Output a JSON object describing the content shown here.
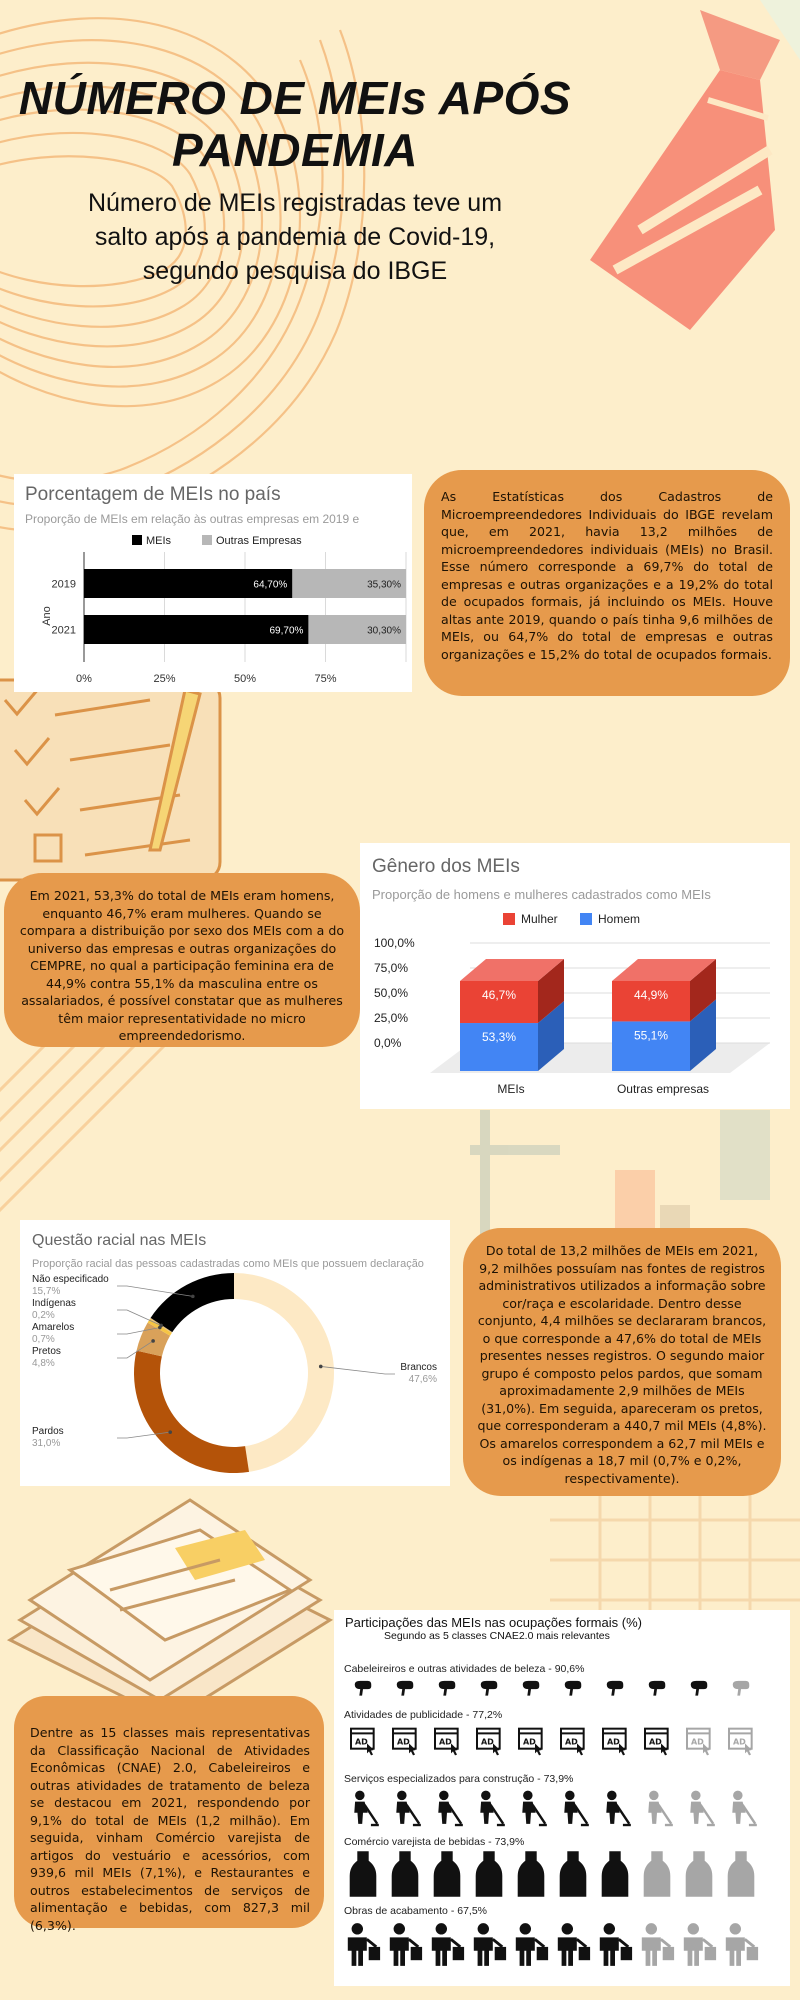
{
  "header": {
    "title": "NÚMERO DE MEIs APÓS PANDEMIA",
    "subtitle": "Número de MEIs registradas teve um salto após a pandemia de Covid-19, segundo pesquisa do IBGE"
  },
  "colors": {
    "background": "#fdeecb",
    "bubble": "#e69a4c",
    "mei_black": "#000000",
    "other_gray": "#b7b7b7",
    "mulher_red": "#ea4335",
    "homem_blue": "#4285f4",
    "brancos": "#fde9c5",
    "pardos": "#b45309",
    "pretos": "#d9a15a",
    "amarelos": "#f6c544",
    "indigenas": "#e8c17f",
    "nao_especificado": "#000000",
    "icon_dark": "#111111",
    "icon_light": "#a6a6a6"
  },
  "text_blocks": {
    "estatisticas": "As Estatísticas dos Cadastros de Microempreendedores Individuais do IBGE revelam que, em 2021, havia 13,2 milhões de microempreendedores individuais (MEIs) no Brasil. Esse número corresponde a 69,7% do total de empresas e outras organizações e a 19,2% do total de ocupados formais, já incluindo os MEIs. Houve altas ante 2019, quando o país tinha 9,6 milhões de MEIs, ou 64,7% do total de empresas e outras organizações e 15,2% do total de ocupados formais.",
    "genero": "Em 2021, 53,3% do total de MEIs eram homens, enquanto 46,7% eram mulheres. Quando se compara a distribuição por sexo dos MEIs com a do universo das empresas e outras organizações do CEMPRE, no qual a participação feminina era de 44,9% contra 55,1% da masculina entre os assalariados, é possível constatar que as mulheres têm maior representatividade no micro empreendedorismo.",
    "racial": "Do total de 13,2 milhões de MEIs em 2021, 9,2 milhões possuíam nas fontes de registros administrativos utilizados a informação sobre cor/raça e escolaridade. Dentro desse conjunto, 4,4 milhões se declararam brancos, o que corresponde a 47,6% do total de MEIs presentes nesses registros. O segundo maior grupo é composto pelos pardos, que somam aproximadamente 2,9 milhões de MEIs (31,0%). Em seguida, apareceram os pretos, que corresponderam a 440,7 mil MEIs (4,8%). Os amarelos correspondem a 62,7 mil MEIs e os indígenas a 18,7 mil (0,7% e 0,2%, respectivamente).",
    "classes": "Dentre as 15 classes mais representativas da Classificação Nacional de Atividades Econômicas (CNAE) 2.0, Cabeleireiros e outras atividades de tratamento de beleza se destacou em 2021, respondendo por 9,1% do total de MEIs (1,2 milhão). Em seguida, vinham Comércio varejista de artigos do vestuário e acessórios, com 939,6 mil MEIs (7,1%), e Restaurantes e outros estabelecimentos de serviços de alimentação e bebidas, com 827,3 mil (6,3%)."
  },
  "chart_data": [
    {
      "type": "bar",
      "orientation": "horizontal",
      "stacked": true,
      "title": "Porcentagem de MEIs no país",
      "subtitle": "Proporção de MEIs em relação às outras empresas em 2019 e",
      "ylabel": "Ano",
      "categories": [
        "2019",
        "2021"
      ],
      "series": [
        {
          "name": "MEIs",
          "values": [
            64.7,
            69.7
          ],
          "labels": [
            "64,70%",
            "69,70%"
          ]
        },
        {
          "name": "Outras Empresas",
          "values": [
            35.3,
            30.3
          ],
          "labels": [
            "35,30%",
            "30,30%"
          ]
        }
      ],
      "xticks": [
        "0%",
        "25%",
        "50%",
        "75%"
      ],
      "xlim": [
        0,
        100
      ],
      "legend": "top",
      "grid": true
    },
    {
      "type": "bar",
      "stacked": true,
      "three_d": true,
      "title": "Gênero dos MEIs",
      "subtitle": "Proporção de homens e mulheres cadastrados como MEIs",
      "categories": [
        "MEIs",
        "Outras empresas"
      ],
      "series": [
        {
          "name": "Homem",
          "values": [
            53.3,
            55.1
          ],
          "labels": [
            "53,3%",
            "55,1%"
          ]
        },
        {
          "name": "Mulher",
          "values": [
            46.7,
            44.9
          ],
          "labels": [
            "46,7%",
            "44,9%"
          ]
        }
      ],
      "legend_order": [
        "Mulher",
        "Homem"
      ],
      "yticks": [
        "100,0%",
        "75,0%",
        "50,0%",
        "25,0%",
        "0,0%"
      ],
      "ylim": [
        0,
        100
      ],
      "legend": "top",
      "grid": true
    },
    {
      "type": "pie",
      "donut": true,
      "title": "Questão racial nas MEIs",
      "subtitle": "Proporção racial das pessoas cadastradas como MEIs que possuem declaração",
      "slices": [
        {
          "name": "Brancos",
          "value": 47.6,
          "label": "47,6%"
        },
        {
          "name": "Pardos",
          "value": 31.0,
          "label": "31,0%"
        },
        {
          "name": "Pretos",
          "value": 4.8,
          "label": "4,8%"
        },
        {
          "name": "Amarelos",
          "value": 0.7,
          "label": "0,7%"
        },
        {
          "name": "Indígenas",
          "value": 0.2,
          "label": "0,2%"
        },
        {
          "name": "Não especificado",
          "value": 15.7,
          "label": "15,7%"
        }
      ]
    },
    {
      "type": "pictogram",
      "title": "Participações das MEIs nas ocupações formais (%)",
      "subtitle": "Segundo as 5 classes CNAE2.0 mais relevantes",
      "icons_per_row": 10,
      "rows": [
        {
          "label": "Cabeleireiros e outras atividades de beleza - 90,6%",
          "value": 90.6,
          "icon": "hair-dryer-icon"
        },
        {
          "label": "Atividades de publicidade - 77,2%",
          "value": 77.2,
          "icon": "ad-click-icon"
        },
        {
          "label": "Serviços especializados para construção - 73,9%",
          "value": 73.9,
          "icon": "construction-worker-icon"
        },
        {
          "label": "Comércio varejista de bebidas - 73,9%",
          "value": 73.9,
          "icon": "bottle-icon"
        },
        {
          "label": "Obras de acabamento - 67,5%",
          "value": 67.5,
          "icon": "painter-worker-icon"
        }
      ]
    }
  ]
}
